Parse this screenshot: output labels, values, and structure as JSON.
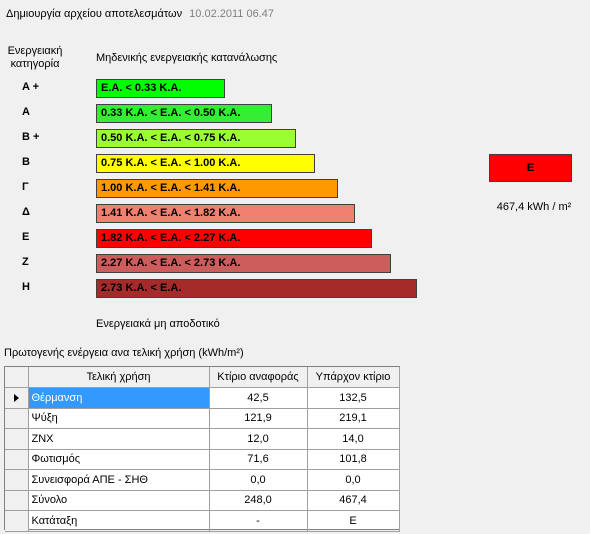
{
  "header": {
    "title": "Δημιουργία αρχείου αποτελεσμάτων",
    "timestamp": "10.02.2011 06.47"
  },
  "scale": {
    "category_heading": "Ενεργειακή κατηγορία",
    "top_label": "Μηδενικής ενεργειακής κατανάλωσης",
    "bottom_label": "Ενεργειακά μη αποδοτικό",
    "bars": [
      {
        "category": "A +",
        "range": "Ε.Α. < 0.33 Κ.Α.",
        "color": "#00ff00"
      },
      {
        "category": "A",
        "range": "0.33 Κ.Α. <  Ε.Α. < 0.50 Κ.Α.",
        "color": "#33ee33"
      },
      {
        "category": "B +",
        "range": "0.50 Κ.Α. <  Ε.Α. < 0.75 Κ.Α.",
        "color": "#99ff33"
      },
      {
        "category": "B",
        "range": "0.75 Κ.Α. <  Ε.Α. < 1.00 Κ.Α.",
        "color": "#ffff00"
      },
      {
        "category": "Γ",
        "range": "1.00 Κ.Α. <  Ε.Α. < 1.41 Κ.Α.",
        "color": "#ff9900"
      },
      {
        "category": "Δ",
        "range": "1.41 Κ.Α. <  Ε.Α. < 1.82 Κ.Α.",
        "color": "#f08070"
      },
      {
        "category": "Ε",
        "range": "1.82 Κ.Α. <  Ε.Α. < 2.27 Κ.Α.",
        "color": "#ff0000"
      },
      {
        "category": "Ζ",
        "range": "2.27 Κ.Α. <  Ε.Α. < 2.73 Κ.Α.",
        "color": "#cd5c5c"
      },
      {
        "category": "Η",
        "range": "2.73 Κ.Α. <  Ε.Α.",
        "color": "#a52a2a"
      }
    ]
  },
  "result": {
    "category": "Ε",
    "color": "#ff0000",
    "value": "467,4 kWh / m²"
  },
  "table": {
    "title": "Πρωτογενής ενέργεια ανα τελική χρήση (kWh/m²)",
    "columns": [
      "Τελική χρήση",
      "Κτίριο αναφοράς",
      "Υπάρχον κτίριο"
    ],
    "rows": [
      [
        "Θέρμανση",
        "42,5",
        "132,5"
      ],
      [
        "Ψύξη",
        "121,9",
        "219,1"
      ],
      [
        "ΖΝΧ",
        "12,0",
        "14,0"
      ],
      [
        "Φωτισμός",
        "71,6",
        "101,8"
      ],
      [
        "Συνεισφορά ΑΠΕ - ΣΗΘ",
        "0,0",
        "0,0"
      ],
      [
        "Σύνολο",
        "248,0",
        "467,4"
      ],
      [
        "Κατάταξη",
        "-",
        "Ε"
      ]
    ]
  }
}
